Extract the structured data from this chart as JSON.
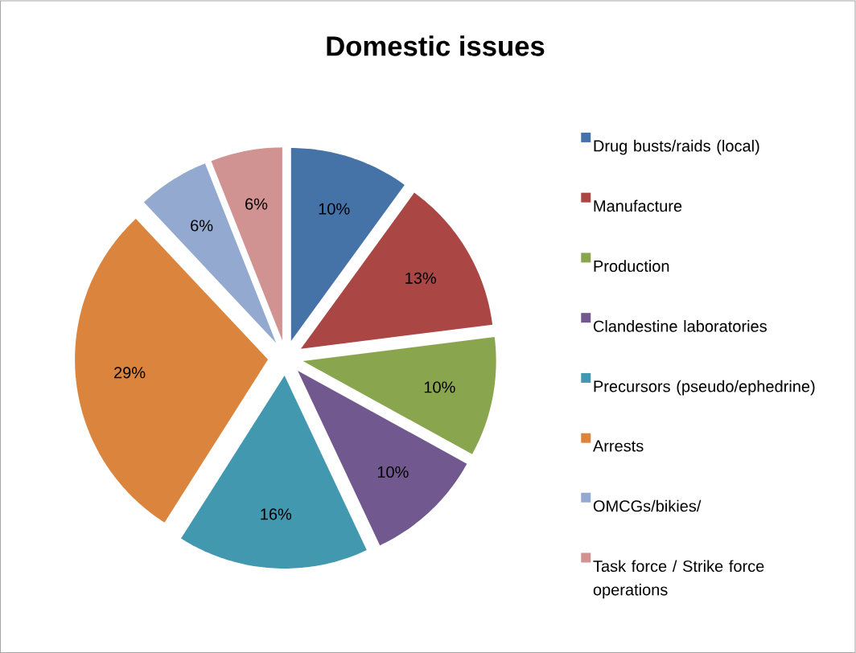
{
  "chart_data": {
    "type": "pie",
    "title": "Domestic issues",
    "categories": [
      "Drug busts/raids (local)",
      "Manufacture",
      "Production",
      "Clandestine laboratories",
      "Precursors (pseudo/ephedrine)",
      "Arrests",
      "OMCGs/bikies/",
      "Task force / Strike force operations"
    ],
    "values": [
      10,
      13,
      10,
      10,
      16,
      29,
      6,
      6
    ],
    "value_labels": [
      "10%",
      "13%",
      "10%",
      "10%",
      "16%",
      "29%",
      "6%",
      "6%"
    ],
    "colors": [
      "#4572a7",
      "#aa4643",
      "#89a54e",
      "#71588f",
      "#4198af",
      "#db843d",
      "#93a9cf",
      "#d19392"
    ],
    "legend": "right"
  }
}
